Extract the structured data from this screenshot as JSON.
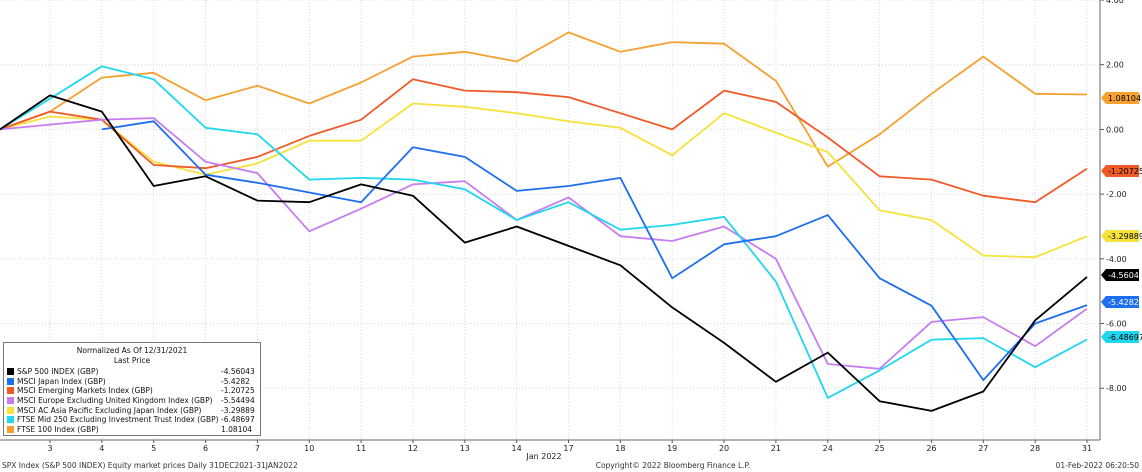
{
  "chart_data": {
    "type": "line",
    "x": [
      "3",
      "4",
      "5",
      "6",
      "7",
      "10",
      "11",
      "12",
      "13",
      "14",
      "17",
      "18",
      "19",
      "20",
      "21",
      "24",
      "25",
      "26",
      "27",
      "28",
      "31"
    ],
    "x_axis_label": "Jan 2022",
    "ylim": [
      -9.6,
      4.0
    ],
    "yticks": [
      4,
      2,
      0,
      -2,
      -4,
      -6,
      -8
    ],
    "ytick_labels": [
      "4.00",
      "2.00",
      "0.00",
      "-2.00",
      "-4.00",
      "-6.00",
      "-8.00"
    ],
    "start_value": 0,
    "grid": true,
    "series": [
      {
        "name": "S&P 500 INDEX (GBP)",
        "color": "#000000",
        "last": "-4.56043",
        "values": [
          1.05,
          0.55,
          -1.75,
          -1.45,
          -2.2,
          -2.25,
          -1.7,
          -2.05,
          -3.5,
          -3.0,
          -3.6,
          -4.2,
          -5.5,
          -6.6,
          -7.8,
          -6.9,
          -8.4,
          -8.7,
          -8.1,
          -5.9,
          -4.56
        ]
      },
      {
        "name": "MSCI Japan Index (GBP)",
        "color": "#1e6ef0",
        "last": "-5.4282",
        "values": [
          null,
          0.0,
          0.25,
          -1.4,
          -1.65,
          -1.95,
          -2.25,
          -0.55,
          -0.85,
          -1.9,
          -1.75,
          -1.5,
          -4.6,
          -3.55,
          -3.3,
          -2.65,
          -4.6,
          -5.45,
          -7.75,
          -6.0,
          -5.43
        ]
      },
      {
        "name": "MSCI Emerging Markets Index (GBP)",
        "color": "#f05a28",
        "last": "-1.20725",
        "values": [
          0.55,
          0.3,
          -1.1,
          -1.2,
          -0.85,
          -0.2,
          0.3,
          1.55,
          1.2,
          1.15,
          1.0,
          0.5,
          0.0,
          1.2,
          0.85,
          -0.25,
          -1.45,
          -1.55,
          -2.05,
          -2.25,
          -1.21
        ]
      },
      {
        "name": "MSCI Europe Excluding United Kingdom Index (GBP)",
        "color": "#c77df0",
        "last": "-5.54494",
        "values": [
          0.15,
          0.3,
          0.35,
          -1.0,
          -1.35,
          -3.15,
          -2.45,
          -1.7,
          -1.6,
          -2.8,
          -2.1,
          -3.3,
          -3.45,
          -3.0,
          -4.0,
          -7.25,
          -7.4,
          -5.95,
          -5.8,
          -6.7,
          -5.54
        ]
      },
      {
        "name": "MSCI AC Asia Pacific Excluding Japan Index (GBP)",
        "color": "#f5e23a",
        "last": "-3.29889",
        "values": [
          0.4,
          0.3,
          -1.0,
          -1.4,
          -1.05,
          -0.35,
          -0.35,
          0.8,
          0.7,
          0.5,
          0.25,
          0.05,
          -0.8,
          0.5,
          -0.1,
          -0.7,
          -2.5,
          -2.8,
          -3.9,
          -3.95,
          -3.3
        ]
      },
      {
        "name": "FTSE Mid 250 Excluding Investment Trust Index (GBP)",
        "color": "#20d7f0",
        "last": "-6.48697",
        "values": [
          0.95,
          1.95,
          1.55,
          0.05,
          -0.15,
          -1.55,
          -1.5,
          -1.55,
          -1.85,
          -2.8,
          -2.25,
          -3.1,
          -2.95,
          -2.7,
          -4.7,
          -8.3,
          -7.45,
          -6.5,
          -6.45,
          -7.35,
          -6.49
        ]
      },
      {
        "name": "FTSE 100 Index (GBP)",
        "color": "#f5a030",
        "last": "1.08104",
        "values": [
          0.55,
          1.6,
          1.75,
          0.9,
          1.35,
          0.8,
          1.45,
          2.25,
          2.4,
          2.1,
          3.0,
          2.4,
          2.7,
          2.65,
          1.5,
          -1.15,
          -0.15,
          1.1,
          2.25,
          1.1,
          1.08
        ]
      }
    ],
    "end_label_order": [
      "FTSE 100 Index (GBP)",
      "MSCI Emerging Markets Index (GBP)",
      "MSCI AC Asia Pacific Excluding Japan Index (GBP)",
      "S&P 500 INDEX (GBP)",
      "MSCI Japan Index (GBP)",
      "FTSE Mid 250 Excluding Investment Trust Index (GBP)"
    ]
  },
  "legend": {
    "title": "Normalized As Of 12/31/2021",
    "subtitle": "Last Price",
    "items": [
      {
        "name": "S&P 500 INDEX (GBP)",
        "value": "-4.56043",
        "color": "#000000"
      },
      {
        "name": "MSCI Japan Index (GBP)",
        "value": "-5.4282",
        "color": "#1e6ef0"
      },
      {
        "name": "MSCI Emerging Markets Index (GBP)",
        "value": "-1.20725",
        "color": "#f05a28"
      },
      {
        "name": "MSCI Europe Excluding United Kingdom Index (GBP)",
        "value": "-5.54494",
        "color": "#c77df0"
      },
      {
        "name": "MSCI AC Asia Pacific Excluding Japan Index (GBP)",
        "value": "-3.29889",
        "color": "#f5e23a"
      },
      {
        "name": "FTSE Mid 250 Excluding Investment Trust Index (GBP)",
        "value": "-6.48697",
        "color": "#20d7f0"
      },
      {
        "name": "FTSE 100 Index (GBP)",
        "value": "1.08104",
        "color": "#f5a030"
      }
    ]
  },
  "footer": {
    "left": "SPX Index (S&P 500 INDEX) Equity market prices  Daily 31DEC2021-31JAN2022",
    "center": "Copyright© 2022 Bloomberg Finance L.P.",
    "right": "01-Feb-2022 06:20:50"
  }
}
